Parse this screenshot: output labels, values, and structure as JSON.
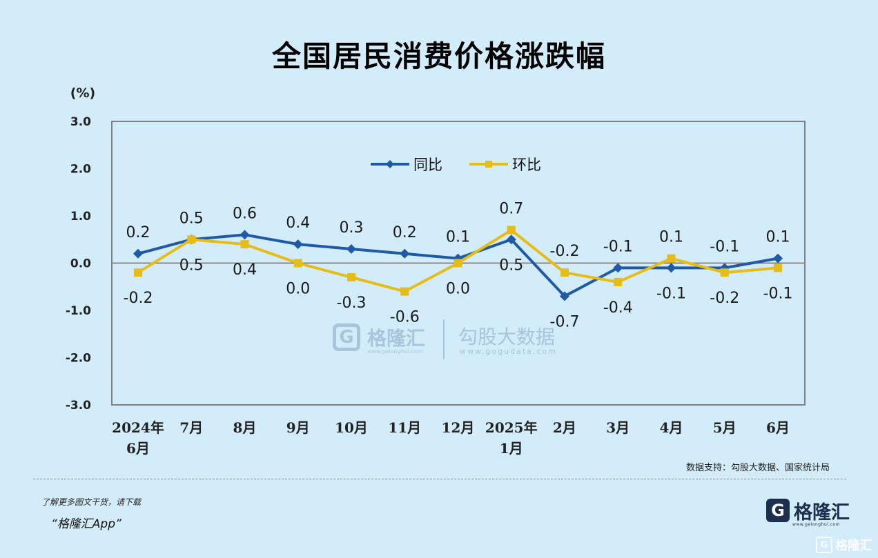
{
  "title": "全国居民消费价格涨跌幅",
  "chart_data": {
    "type": "line",
    "ylabel": "(%)",
    "ylim": [
      -3.0,
      3.0
    ],
    "yticks": [
      "3.0",
      "2.0",
      "1.0",
      "0.0",
      "-1.0",
      "-2.0",
      "-3.0"
    ],
    "categories": [
      [
        "2024年",
        "6月"
      ],
      [
        "7月"
      ],
      [
        "8月"
      ],
      [
        "9月"
      ],
      [
        "10月"
      ],
      [
        "11月"
      ],
      [
        "12月"
      ],
      [
        "2025年",
        "1月"
      ],
      [
        "2月"
      ],
      [
        "3月"
      ],
      [
        "4月"
      ],
      [
        "5月"
      ],
      [
        "6月"
      ]
    ],
    "legend_position": "top-center",
    "series": [
      {
        "name": "同比",
        "color": "#1f5aa6",
        "marker": "diamond",
        "values": [
          0.2,
          0.5,
          0.6,
          0.4,
          0.3,
          0.2,
          0.1,
          0.5,
          -0.7,
          -0.1,
          -0.1,
          -0.1,
          0.1
        ],
        "labels": [
          "0.2",
          "0.5",
          "0.6",
          "0.4",
          "0.3",
          "0.2",
          "0.1",
          "0.5",
          "-0.7",
          "-0.1",
          "-0.1",
          "-0.1",
          "0.1"
        ]
      },
      {
        "name": "环比",
        "color": "#e5bd16",
        "marker": "square",
        "values": [
          -0.2,
          0.5,
          0.4,
          0.0,
          -0.3,
          -0.6,
          0.0,
          0.7,
          -0.2,
          -0.4,
          0.1,
          -0.2,
          -0.1
        ],
        "labels": [
          "-0.2",
          "0.5",
          "0.4",
          "0.0",
          "-0.3",
          "-0.6",
          "0.0",
          "0.7",
          "-0.2",
          "-0.4",
          "0.1",
          "-0.2",
          "-0.1"
        ]
      }
    ]
  },
  "watermark": {
    "brand": "格隆汇",
    "brand_sub": "www.gelonghui.com",
    "partner": "勾股大数据",
    "partner_sub": "www.gogudata.com"
  },
  "source": "数据支持：勾股大数据、国家统计局",
  "promo_line1": "了解更多图文干货，请下载",
  "promo_line2": "“格隆汇App”",
  "logo": {
    "mark": "G",
    "text": "格隆汇",
    "sub": "www.gelonghui.com"
  },
  "corner_watermark": "格隆汇"
}
